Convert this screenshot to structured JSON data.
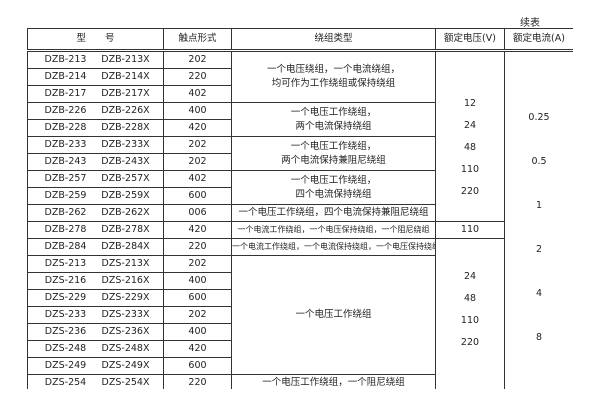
{
  "continued_label": "续表",
  "headers": [
    "型　　号",
    "触点形式",
    "绕组类型",
    "额定电压(V)",
    "额定电流(A)"
  ],
  "rows": [
    [
      "DZB-213",
      "DZB-213X",
      "202"
    ],
    [
      "DZB-214",
      "DZB-214X",
      "220"
    ],
    [
      "DZB-217",
      "DZB-217X",
      "402"
    ],
    [
      "DZB-226",
      "DZB-226X",
      "400"
    ],
    [
      "DZB-228",
      "DZB-228X",
      "420"
    ],
    [
      "DZB-233",
      "DZB-233X",
      "202"
    ],
    [
      "DZB-243",
      "DZB-243X",
      "202"
    ],
    [
      "DZB-257",
      "DZB-257X",
      "402"
    ],
    [
      "DZB-259",
      "DZB-259X",
      "600"
    ],
    [
      "DZB-262",
      "DZB-262X",
      "006"
    ],
    [
      "DZB-278",
      "DZB-278X",
      "420"
    ],
    [
      "DZB-284",
      "DZB-284X",
      "220"
    ],
    [
      "DZS-213",
      "DZS-213X",
      "202"
    ],
    [
      "DZS-216",
      "DZS-216X",
      "400"
    ],
    [
      "DZS-229",
      "DZS-229X",
      "600"
    ],
    [
      "DZS-233",
      "DZS-233X",
      "202"
    ],
    [
      "DZS-236",
      "DZS-236X",
      "400"
    ],
    [
      "DZS-248",
      "DZS-248X",
      "420"
    ],
    [
      "DZS-249",
      "DZS-249X",
      "600"
    ],
    [
      "DZS-254",
      "DZS-254X",
      "220"
    ]
  ],
  "windings": [
    [
      "一个电压绕组，一个电流绕组，",
      "均可作为工作绕组或保持绕组"
    ],
    [
      "一个电压工作绕组，",
      "两个电流保持绕组"
    ],
    [
      "一个电压工作绕组，",
      "两个电流保持兼阻尼绕组"
    ],
    [
      "一个电压工作绕组，",
      "四个电流保持绕组"
    ],
    [
      "一个电压工作绕组，四个电流保持兼阻尼绕组"
    ],
    [
      "一个电流工作绕组，一个电压保持绕组，一个阻尼绕组"
    ],
    [
      "一个电流工作绕组，一个电流保持绕组，一个电压保持绕组"
    ],
    [
      "一个电压工作绕组"
    ],
    [
      "一个电压工作绕组，一个阻尼绕组"
    ]
  ],
  "voltages_a": [
    "12",
    "24",
    "48",
    "110",
    "220"
  ],
  "voltage_b": "110",
  "voltages_c": [
    "24",
    "48",
    "110",
    "220"
  ],
  "currents": [
    "0.25",
    "0.5",
    "1",
    "2",
    "4",
    "8"
  ]
}
